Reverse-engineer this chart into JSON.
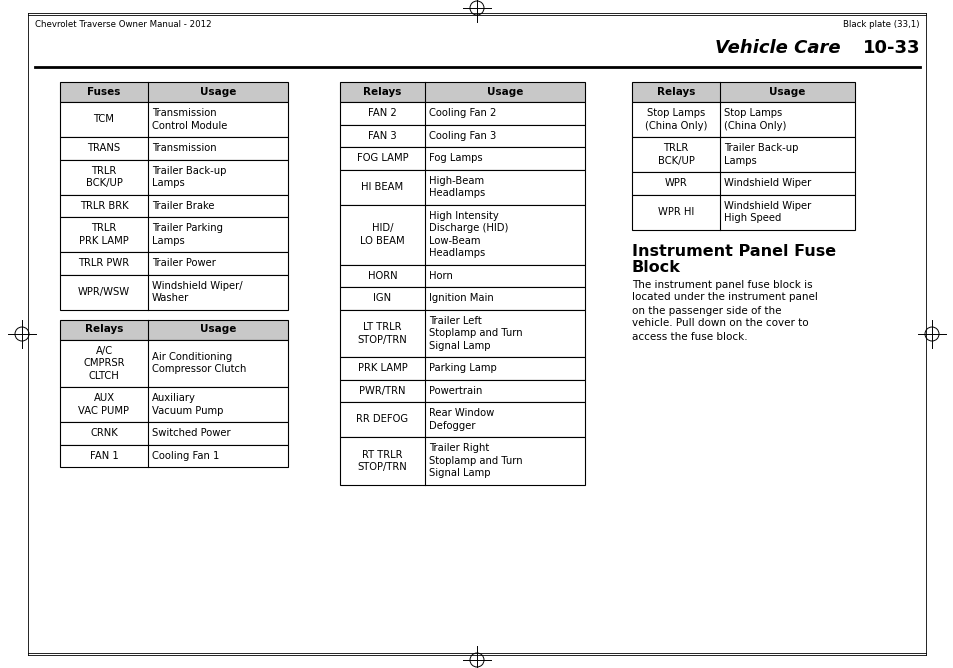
{
  "page_header_left": "Chevrolet Traverse Owner Manual - 2012",
  "page_header_right": "Black plate (33,1)",
  "section_title": "Vehicle Care",
  "section_number": "10-33",
  "table1_headers": [
    "Fuses",
    "Usage"
  ],
  "table1_rows": [
    [
      "TCM",
      "Transmission\nControl Module"
    ],
    [
      "TRANS",
      "Transmission"
    ],
    [
      "TRLR\nBCK/UP",
      "Trailer Back-up\nLamps"
    ],
    [
      "TRLR BRK",
      "Trailer Brake"
    ],
    [
      "TRLR\nPRK LAMP",
      "Trailer Parking\nLamps"
    ],
    [
      "TRLR PWR",
      "Trailer Power"
    ],
    [
      "WPR/WSW",
      "Windshield Wiper/\nWasher"
    ]
  ],
  "table2_headers": [
    "Relays",
    "Usage"
  ],
  "table2_rows": [
    [
      "A/C\nCMPRSR\nCLTCH",
      "Air Conditioning\nCompressor Clutch"
    ],
    [
      "AUX\nVAC PUMP",
      "Auxiliary\nVacuum Pump"
    ],
    [
      "CRNK",
      "Switched Power"
    ],
    [
      "FAN 1",
      "Cooling Fan 1"
    ]
  ],
  "table3_headers": [
    "Relays",
    "Usage"
  ],
  "table3_rows": [
    [
      "FAN 2",
      "Cooling Fan 2"
    ],
    [
      "FAN 3",
      "Cooling Fan 3"
    ],
    [
      "FOG LAMP",
      "Fog Lamps"
    ],
    [
      "HI BEAM",
      "High-Beam\nHeadlamps"
    ],
    [
      "HID/\nLO BEAM",
      "High Intensity\nDischarge (HID)\nLow-Beam\nHeadlamps"
    ],
    [
      "HORN",
      "Horn"
    ],
    [
      "IGN",
      "Ignition Main"
    ],
    [
      "LT TRLR\nSTOP/TRN",
      "Trailer Left\nStoplamp and Turn\nSignal Lamp"
    ],
    [
      "PRK LAMP",
      "Parking Lamp"
    ],
    [
      "PWR/TRN",
      "Powertrain"
    ],
    [
      "RR DEFOG",
      "Rear Window\nDefogger"
    ],
    [
      "RT TRLR\nSTOP/TRN",
      "Trailer Right\nStoplamp and Turn\nSignal Lamp"
    ]
  ],
  "table4_headers": [
    "Relays",
    "Usage"
  ],
  "table4_rows": [
    [
      "Stop Lamps\n(China Only)",
      "Stop Lamps\n(China Only)"
    ],
    [
      "TRLR\nBCK/UP",
      "Trailer Back-up\nLamps"
    ],
    [
      "WPR",
      "Windshield Wiper"
    ],
    [
      "WPR HI",
      "Windshield Wiper\nHigh Speed"
    ]
  ],
  "instr_title1": "Instrument Panel Fuse",
  "instr_title2": "Block",
  "instr_body": "The instrument panel fuse block is\nlocated under the instrument panel\non the passenger side of the\nvehicle. Pull down on the cover to\naccess the fuse block.",
  "bg_color": "#ffffff",
  "text_color": "#000000",
  "header_bg": "#c8c8c8",
  "line_color": "#000000",
  "fig_width": 9.54,
  "fig_height": 6.68,
  "dpi": 100
}
